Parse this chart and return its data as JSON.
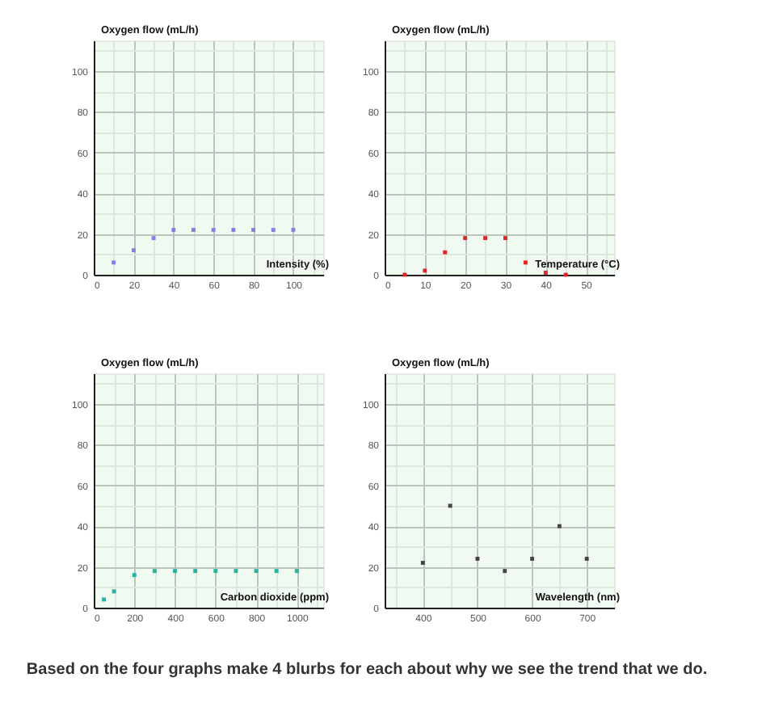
{
  "chart_data": [
    {
      "type": "scatter",
      "xlabel": "Intensity (%)",
      "ylabel": "Oxygen flow (mL/h)",
      "x": [
        10,
        20,
        30,
        40,
        50,
        60,
        70,
        80,
        90,
        100
      ],
      "values": [
        6,
        12,
        18,
        22,
        22,
        22,
        22,
        22,
        22,
        22
      ],
      "color": "#7f7fe6",
      "marker": "square",
      "xlim": [
        0,
        115
      ],
      "ylim": [
        0,
        115
      ],
      "xticks": [
        0,
        {
          "value": 10,
          "label": null
        },
        20,
        {
          "value": 30,
          "label": null
        },
        40,
        {
          "value": 50,
          "label": null
        },
        60,
        {
          "value": 70,
          "label": null
        },
        80,
        {
          "value": 90,
          "label": null
        },
        100,
        {
          "value": 110,
          "label": null
        }
      ],
      "yticks": [
        0,
        {
          "value": 10,
          "label": null
        },
        20,
        {
          "value": 30,
          "label": null
        },
        40,
        {
          "value": 50,
          "label": null
        },
        60,
        {
          "value": 70,
          "label": null
        },
        80,
        {
          "value": 90,
          "label": null
        },
        100,
        {
          "value": 110,
          "label": null
        }
      ],
      "grid": true
    },
    {
      "type": "scatter",
      "xlabel": "Temperature (°C)",
      "ylabel": "Oxygen flow (mL/h)",
      "x": [
        5,
        10,
        15,
        20,
        25,
        30,
        35,
        40,
        45
      ],
      "values": [
        0,
        2,
        11,
        18,
        18,
        18,
        6,
        1,
        0
      ],
      "color": "#e02428",
      "marker": "square",
      "xlim": [
        0,
        57
      ],
      "ylim": [
        0,
        115
      ],
      "xticks": [
        0,
        {
          "value": 5,
          "label": null
        },
        10,
        {
          "value": 15,
          "label": null
        },
        20,
        {
          "value": 25,
          "label": null
        },
        30,
        {
          "value": 35,
          "label": null
        },
        40,
        {
          "value": 45,
          "label": null
        },
        50,
        {
          "value": 55,
          "label": null
        }
      ],
      "yticks": [
        0,
        {
          "value": 10,
          "label": null
        },
        20,
        {
          "value": 30,
          "label": null
        },
        40,
        {
          "value": 50,
          "label": null
        },
        60,
        {
          "value": 70,
          "label": null
        },
        80,
        {
          "value": 90,
          "label": null
        },
        100,
        {
          "value": 110,
          "label": null
        }
      ],
      "grid": true
    },
    {
      "type": "scatter",
      "xlabel": "Carbon dioxide (ppm)",
      "ylabel": "Oxygen flow (mL/h)",
      "x": [
        50,
        100,
        200,
        300,
        400,
        500,
        600,
        700,
        800,
        900,
        1000
      ],
      "values": [
        4,
        8,
        16,
        18,
        18,
        18,
        18,
        18,
        18,
        18,
        18
      ],
      "color": "#25b3a0",
      "marker": "square",
      "xlim": [
        0,
        1130
      ],
      "ylim": [
        0,
        115
      ],
      "xticks": [
        0,
        {
          "value": 100,
          "label": null
        },
        200,
        {
          "value": 300,
          "label": null
        },
        400,
        {
          "value": 500,
          "label": null
        },
        600,
        {
          "value": 700,
          "label": null
        },
        800,
        {
          "value": 900,
          "label": null
        },
        1000,
        {
          "value": 1100,
          "label": null
        }
      ],
      "yticks": [
        0,
        {
          "value": 10,
          "label": null
        },
        20,
        {
          "value": 30,
          "label": null
        },
        40,
        {
          "value": 50,
          "label": null
        },
        60,
        {
          "value": 70,
          "label": null
        },
        80,
        {
          "value": 90,
          "label": null
        },
        100,
        {
          "value": 110,
          "label": null
        }
      ],
      "grid": true
    },
    {
      "type": "scatter",
      "xlabel": "Wavelength (nm)",
      "ylabel": "Oxygen flow (mL/h)",
      "x": [
        400,
        450,
        500,
        550,
        600,
        650,
        700
      ],
      "values": [
        22,
        50,
        24,
        18,
        24,
        40,
        24
      ],
      "color": "#444444",
      "marker": "square",
      "xlim": [
        330,
        750
      ],
      "ylim": [
        0,
        115
      ],
      "xticks": [
        {
          "value": 350,
          "label": null
        },
        400,
        {
          "value": 450,
          "label": null
        },
        500,
        {
          "value": 550,
          "label": null
        },
        600,
        {
          "value": 650,
          "label": null
        },
        700
      ],
      "yticks": [
        0,
        {
          "value": 10,
          "label": null
        },
        20,
        {
          "value": 30,
          "label": null
        },
        40,
        {
          "value": 50,
          "label": null
        },
        60,
        {
          "value": 70,
          "label": null
        },
        80,
        {
          "value": 90,
          "label": null
        },
        100,
        {
          "value": 110,
          "label": null
        }
      ],
      "grid": true
    },
    {
      "type": "other",
      "annotations": [
        "Based on the four graphs make 4 blurbs for each about why we see the trend that we do."
      ]
    }
  ]
}
